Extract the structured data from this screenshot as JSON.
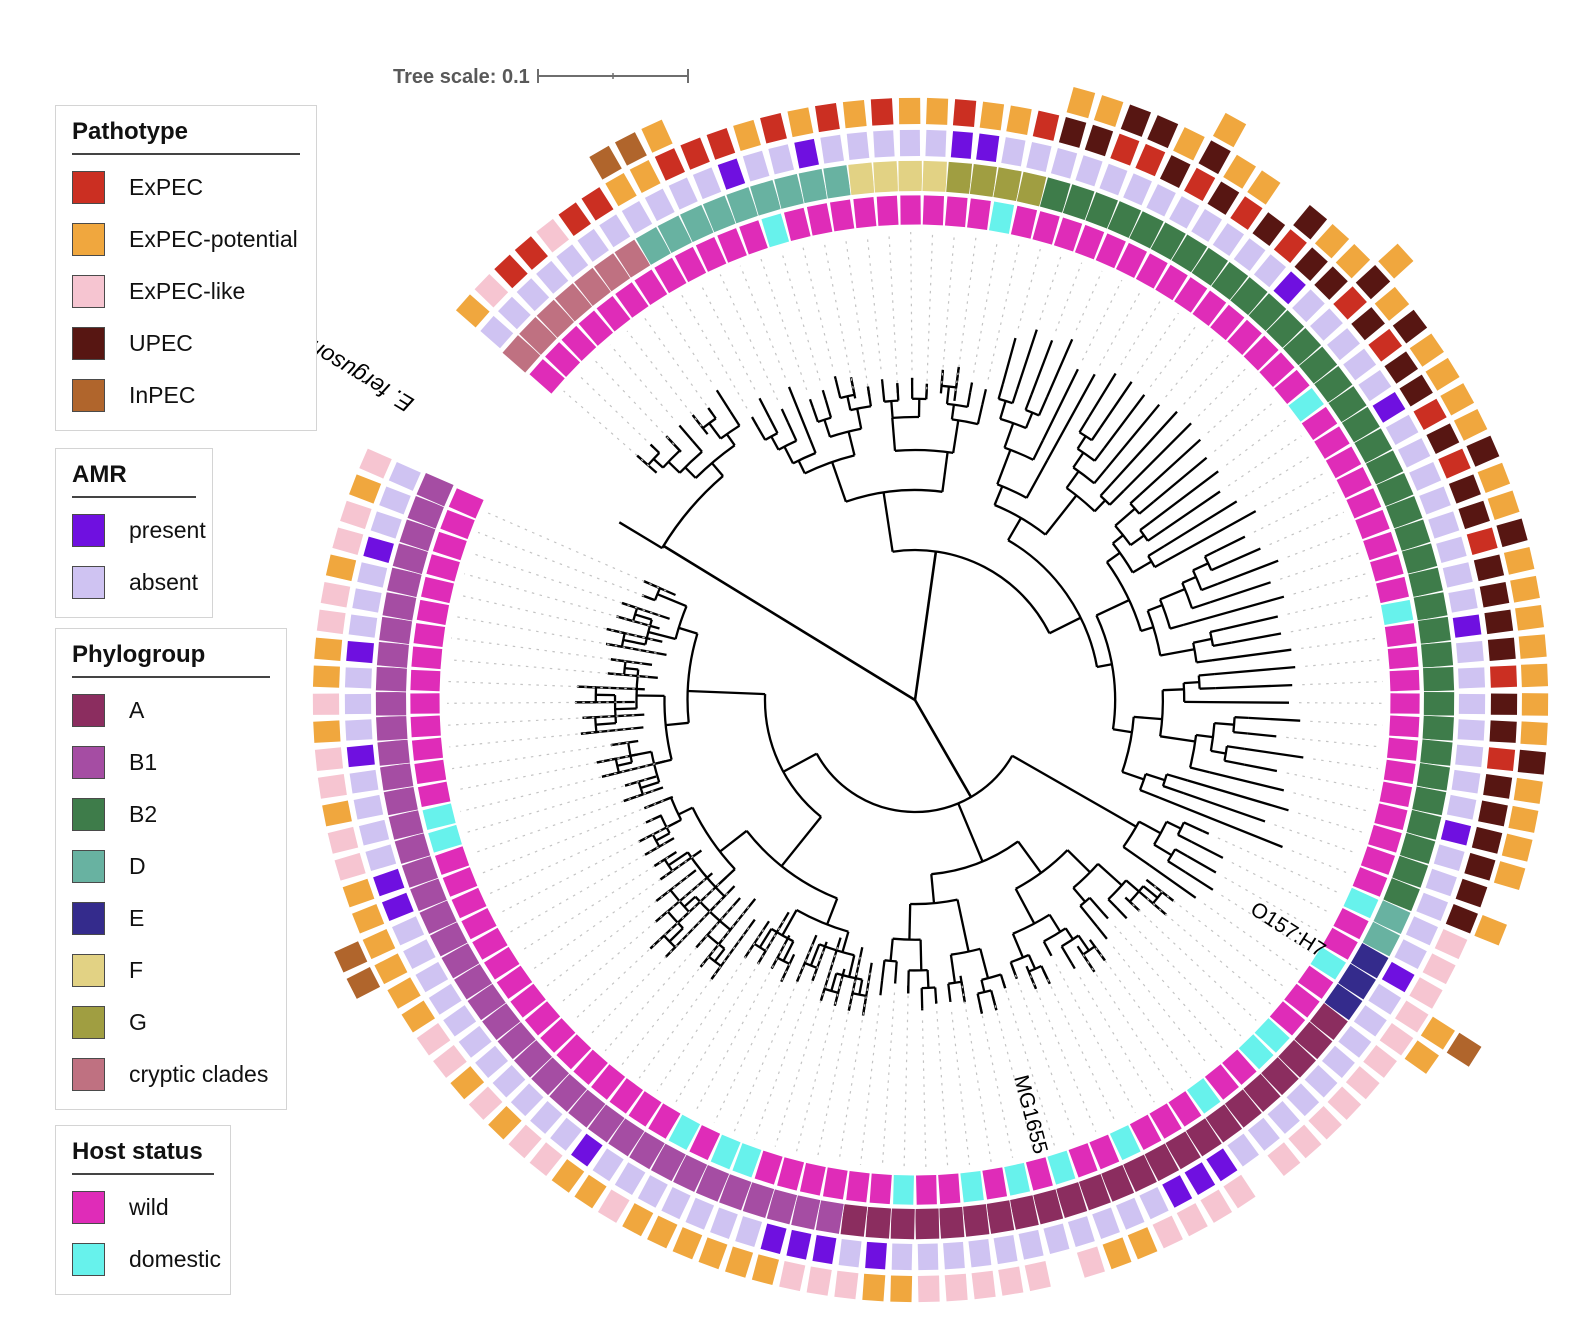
{
  "tree_scale": {
    "label": "Tree scale: 0.1",
    "value": 0.1
  },
  "strain_labels": {
    "outgroup": "E. fergusonii",
    "e_clade": "O157:H7",
    "a_clade": "MG1655"
  },
  "legends": [
    {
      "id": "pathotype",
      "title": "Pathotype",
      "items": [
        {
          "label": "ExPEC",
          "color": "#cb2f22"
        },
        {
          "label": "ExPEC-potential",
          "color": "#f0a73e"
        },
        {
          "label": "ExPEC-like",
          "color": "#f6c5d1"
        },
        {
          "label": "UPEC",
          "color": "#571612"
        },
        {
          "label": "InPEC",
          "color": "#b0652c"
        }
      ]
    },
    {
      "id": "amr",
      "title": "AMR",
      "items": [
        {
          "label": "present",
          "color": "#6f10e0"
        },
        {
          "label": "absent",
          "color": "#cfc3f2"
        }
      ]
    },
    {
      "id": "phylogroup",
      "title": "Phylogroup",
      "items": [
        {
          "label": "A",
          "color": "#8b2d5f"
        },
        {
          "label": "B1",
          "color": "#a54da3"
        },
        {
          "label": "B2",
          "color": "#3e7c4a"
        },
        {
          "label": "D",
          "color": "#68b2a1"
        },
        {
          "label": "E",
          "color": "#342b8c"
        },
        {
          "label": "F",
          "color": "#e2d284"
        },
        {
          "label": "G",
          "color": "#a09e41"
        },
        {
          "label": "cryptic clades",
          "color": "#bf7181"
        }
      ]
    },
    {
      "id": "host",
      "title": "Host status",
      "items": [
        {
          "label": "wild",
          "color": "#df2cb8"
        },
        {
          "label": "domestic",
          "color": "#67f2ec"
        }
      ]
    }
  ],
  "chart_data": {
    "type": "circular_phylogenetic_tree",
    "n_leaves": 129,
    "rings_inner_to_outer": [
      "host_status",
      "phylogroup",
      "amr",
      "pathotype_1",
      "pathotype_2",
      "pathotype_3"
    ],
    "codes": {
      "pathotype": {
        "E": "ExPEC",
        "P": "ExPEC-potential",
        "L": "ExPEC-like",
        "U": "UPEC",
        "I": "InPEC"
      },
      "phylogroup": {
        "A": "A",
        "B1": "B1",
        "B2": "B2",
        "D": "D",
        "E": "E",
        "F": "F",
        "G": "G",
        "CC": "cryptic clades"
      },
      "host": {
        "w": "wild",
        "d": "domestic"
      },
      "amr": {
        "1": "present",
        "0": "absent"
      }
    },
    "colors": {
      "pathotype": {
        "E": "#cb2f22",
        "P": "#f0a73e",
        "L": "#f6c5d1",
        "U": "#571612",
        "I": "#b0652c"
      },
      "phylogroup": {
        "A": "#8b2d5f",
        "B1": "#a54da3",
        "B2": "#3e7c4a",
        "D": "#68b2a1",
        "E": "#342b8c",
        "F": "#e2d284",
        "G": "#a09e41",
        "CC": "#bf7181"
      },
      "host": {
        "w": "#df2cb8",
        "d": "#67f2ec"
      },
      "amr": {
        "1": "#6f10e0",
        "0": "#cfc3f2"
      },
      "branch": "#000000",
      "ray": "#c3c3c3",
      "scale_text": "#595959"
    },
    "clusters_clockwise_from_gap": [
      {
        "phylogroup": "CC",
        "count": 7
      },
      {
        "phylogroup": "D",
        "count": 9
      },
      {
        "phylogroup": "F",
        "count": 4
      },
      {
        "phylogroup": "G",
        "count": 4
      },
      {
        "phylogroup": "B2",
        "count": 37
      },
      {
        "phylogroup": "D",
        "count": 2
      },
      {
        "phylogroup": "E",
        "count": 3
      },
      {
        "phylogroup": "A",
        "count": 23
      },
      {
        "phylogroup": "B1",
        "count": 40
      }
    ],
    "labeled_leaves": {
      "65": "O157:H7",
      "81": "MG1655"
    },
    "outgroup_leaf": "E. fergusonii",
    "leaves": [
      [
        "CC",
        "w",
        0,
        [
          "P"
        ]
      ],
      [
        "CC",
        "w",
        0,
        [
          "L"
        ]
      ],
      [
        "CC",
        "w",
        0,
        [
          "E"
        ]
      ],
      [
        "CC",
        "w",
        0,
        [
          "E"
        ]
      ],
      [
        "CC",
        "w",
        0,
        [
          "L"
        ]
      ],
      [
        "CC",
        "w",
        0,
        [
          "E"
        ]
      ],
      [
        "CC",
        "w",
        0,
        [
          "E"
        ]
      ],
      [
        "D",
        "w",
        0,
        [
          "P",
          "I"
        ]
      ],
      [
        "D",
        "w",
        0,
        [
          "P",
          "I"
        ]
      ],
      [
        "D",
        "w",
        0,
        [
          "E",
          "P"
        ]
      ],
      [
        "D",
        "w",
        0,
        [
          "E"
        ]
      ],
      [
        "D",
        "w",
        1,
        [
          "E"
        ]
      ],
      [
        "D",
        "d",
        0,
        [
          "P"
        ]
      ],
      [
        "D",
        "w",
        0,
        [
          "E"
        ]
      ],
      [
        "D",
        "w",
        1,
        [
          "P"
        ]
      ],
      [
        "D",
        "w",
        0,
        [
          "E"
        ]
      ],
      [
        "F",
        "w",
        0,
        [
          "P"
        ]
      ],
      [
        "F",
        "w",
        0,
        [
          "E"
        ]
      ],
      [
        "F",
        "w",
        0,
        [
          "P"
        ]
      ],
      [
        "F",
        "w",
        0,
        [
          "P"
        ]
      ],
      [
        "G",
        "w",
        1,
        [
          "E"
        ]
      ],
      [
        "G",
        "w",
        1,
        [
          "P"
        ]
      ],
      [
        "G",
        "d",
        0,
        [
          "P"
        ]
      ],
      [
        "G",
        "w",
        0,
        [
          "E"
        ]
      ],
      [
        "B2",
        "w",
        0,
        [
          "U",
          "P"
        ]
      ],
      [
        "B2",
        "w",
        0,
        [
          "U",
          "P"
        ]
      ],
      [
        "B2",
        "w",
        0,
        [
          "E",
          "U"
        ]
      ],
      [
        "B2",
        "w",
        0,
        [
          "E",
          "U"
        ]
      ],
      [
        "B2",
        "w",
        0,
        [
          "U",
          "P"
        ]
      ],
      [
        "B2",
        "w",
        0,
        [
          "E",
          "U",
          "P"
        ]
      ],
      [
        "B2",
        "w",
        0,
        [
          "U",
          "P"
        ]
      ],
      [
        "B2",
        "w",
        0,
        [
          "E",
          "P"
        ]
      ],
      [
        "B2",
        "w",
        0,
        [
          "U"
        ]
      ],
      [
        "B2",
        "w",
        0,
        [
          "E",
          "U"
        ]
      ],
      [
        "B2",
        "w",
        1,
        [
          "U",
          "P"
        ]
      ],
      [
        "B2",
        "w",
        0,
        [
          "U",
          "P"
        ]
      ],
      [
        "B2",
        "w",
        0,
        [
          "E",
          "U",
          "P"
        ]
      ],
      [
        "B2",
        "w",
        0,
        [
          "U",
          "P"
        ]
      ],
      [
        "B2",
        "d",
        0,
        [
          "E",
          "U"
        ]
      ],
      [
        "B2",
        "w",
        0,
        [
          "U",
          "P"
        ]
      ],
      [
        "B2",
        "w",
        1,
        [
          "U",
          "P"
        ]
      ],
      [
        "B2",
        "w",
        0,
        [
          "E",
          "P"
        ]
      ],
      [
        "B2",
        "w",
        0,
        [
          "U",
          "P"
        ]
      ],
      [
        "B2",
        "w",
        0,
        [
          "E",
          "U"
        ]
      ],
      [
        "B2",
        "w",
        0,
        [
          "U",
          "P"
        ]
      ],
      [
        "B2",
        "w",
        0,
        [
          "U",
          "P"
        ]
      ],
      [
        "B2",
        "w",
        0,
        [
          "E",
          "U"
        ]
      ],
      [
        "B2",
        "w",
        0,
        [
          "U",
          "P"
        ]
      ],
      [
        "B2",
        "d",
        0,
        [
          "U",
          "P"
        ]
      ],
      [
        "B2",
        "w",
        1,
        [
          "U",
          "P"
        ]
      ],
      [
        "B2",
        "w",
        0,
        [
          "U",
          "P"
        ]
      ],
      [
        "B2",
        "w",
        0,
        [
          "E",
          "P"
        ]
      ],
      [
        "B2",
        "w",
        0,
        [
          "U",
          "P"
        ]
      ],
      [
        "B2",
        "w",
        0,
        [
          "U",
          "P"
        ]
      ],
      [
        "B2",
        "w",
        0,
        [
          "E",
          "U"
        ]
      ],
      [
        "B2",
        "w",
        0,
        [
          "U",
          "P"
        ]
      ],
      [
        "B2",
        "w",
        0,
        [
          "U",
          "P"
        ]
      ],
      [
        "B2",
        "w",
        1,
        [
          "U",
          "P"
        ]
      ],
      [
        "B2",
        "w",
        0,
        [
          "U",
          "P"
        ]
      ],
      [
        "B2",
        "w",
        0,
        [
          "U"
        ]
      ],
      [
        "B2",
        "w",
        0,
        [
          "U",
          "P"
        ]
      ],
      [
        "D",
        "d",
        0,
        [
          "L"
        ]
      ],
      [
        "D",
        "w",
        0,
        [
          "L"
        ]
      ],
      [
        "E",
        "w",
        1,
        [
          "L"
        ]
      ],
      [
        "E",
        "d",
        0,
        [
          "L",
          "P",
          "I"
        ]
      ],
      [
        "E",
        "w",
        0,
        [
          "L",
          "P"
        ]
      ],
      [
        "A",
        "w",
        0,
        [
          "L"
        ]
      ],
      [
        "A",
        "w",
        0,
        [
          "L"
        ]
      ],
      [
        "A",
        "d",
        0,
        [
          "L"
        ]
      ],
      [
        "A",
        "d",
        0,
        [
          "L"
        ]
      ],
      [
        "A",
        "w",
        0,
        [
          "L"
        ]
      ],
      [
        "A",
        "w",
        0,
        [
          "L"
        ]
      ],
      [
        "A",
        "d",
        0,
        []
      ],
      [
        "A",
        "w",
        1,
        [
          "L"
        ]
      ],
      [
        "A",
        "w",
        1,
        [
          "L"
        ]
      ],
      [
        "A",
        "w",
        1,
        [
          "L"
        ]
      ],
      [
        "A",
        "d",
        0,
        [
          "L"
        ]
      ],
      [
        "A",
        "w",
        0,
        [
          "P"
        ]
      ],
      [
        "A",
        "w",
        0,
        [
          "P"
        ]
      ],
      [
        "A",
        "d",
        0,
        [
          "L"
        ]
      ],
      [
        "A",
        "w",
        0,
        []
      ],
      [
        "A",
        "d",
        0,
        [
          "L"
        ]
      ],
      [
        "A",
        "w",
        0,
        [
          "L"
        ]
      ],
      [
        "A",
        "d",
        0,
        [
          "L"
        ]
      ],
      [
        "A",
        "w",
        0,
        [
          "L"
        ]
      ],
      [
        "A",
        "w",
        0,
        [
          "L"
        ]
      ],
      [
        "A",
        "d",
        0,
        [
          "P"
        ]
      ],
      [
        "A",
        "w",
        1,
        [
          "P"
        ]
      ],
      [
        "A",
        "w",
        0,
        [
          "L"
        ]
      ],
      [
        "B1",
        "w",
        1,
        [
          "L"
        ]
      ],
      [
        "B1",
        "w",
        1,
        [
          "L"
        ]
      ],
      [
        "B1",
        "w",
        1,
        [
          "P"
        ]
      ],
      [
        "B1",
        "w",
        0,
        [
          "P"
        ]
      ],
      [
        "B1",
        "d",
        0,
        [
          "P"
        ]
      ],
      [
        "B1",
        "d",
        0,
        [
          "P"
        ]
      ],
      [
        "B1",
        "w",
        0,
        [
          "P"
        ]
      ],
      [
        "B1",
        "d",
        0,
        [
          "P"
        ]
      ],
      [
        "B1",
        "w",
        0,
        [
          "L"
        ]
      ],
      [
        "B1",
        "w",
        0,
        [
          "P"
        ]
      ],
      [
        "B1",
        "w",
        1,
        [
          "P"
        ]
      ],
      [
        "B1",
        "w",
        0,
        [
          "L"
        ]
      ],
      [
        "B1",
        "w",
        0,
        [
          "L"
        ]
      ],
      [
        "B1",
        "w",
        0,
        [
          "P"
        ]
      ],
      [
        "B1",
        "w",
        0,
        [
          "L"
        ]
      ],
      [
        "B1",
        "w",
        0,
        [
          "P"
        ]
      ],
      [
        "B1",
        "w",
        0,
        [
          "L"
        ]
      ],
      [
        "B1",
        "w",
        0,
        [
          "L"
        ]
      ],
      [
        "B1",
        "w",
        0,
        [
          "P"
        ]
      ],
      [
        "B1",
        "w",
        0,
        [
          "P"
        ]
      ],
      [
        "B1",
        "w",
        0,
        [
          "P",
          "I"
        ]
      ],
      [
        "B1",
        "w",
        0,
        [
          "P",
          "I"
        ]
      ],
      [
        "B1",
        "w",
        1,
        [
          "P"
        ]
      ],
      [
        "B1",
        "w",
        1,
        [
          "P"
        ]
      ],
      [
        "B1",
        "d",
        0,
        [
          "L"
        ]
      ],
      [
        "B1",
        "d",
        0,
        [
          "L"
        ]
      ],
      [
        "B1",
        "w",
        0,
        [
          "P"
        ]
      ],
      [
        "B1",
        "w",
        0,
        [
          "L"
        ]
      ],
      [
        "B1",
        "w",
        1,
        [
          "L"
        ]
      ],
      [
        "B1",
        "w",
        0,
        [
          "P"
        ]
      ],
      [
        "B1",
        "w",
        0,
        [
          "L"
        ]
      ],
      [
        "B1",
        "w",
        0,
        [
          "P"
        ]
      ],
      [
        "B1",
        "w",
        1,
        [
          "P"
        ]
      ],
      [
        "B1",
        "w",
        0,
        [
          "L"
        ]
      ],
      [
        "B1",
        "w",
        0,
        [
          "L"
        ]
      ],
      [
        "B1",
        "w",
        0,
        [
          "P"
        ]
      ],
      [
        "B1",
        "w",
        1,
        [
          "L"
        ]
      ],
      [
        "B1",
        "w",
        0,
        [
          "L"
        ]
      ],
      [
        "B1",
        "w",
        0,
        [
          "P"
        ]
      ],
      [
        "B1",
        "w",
        0,
        [
          "L"
        ]
      ]
    ]
  }
}
